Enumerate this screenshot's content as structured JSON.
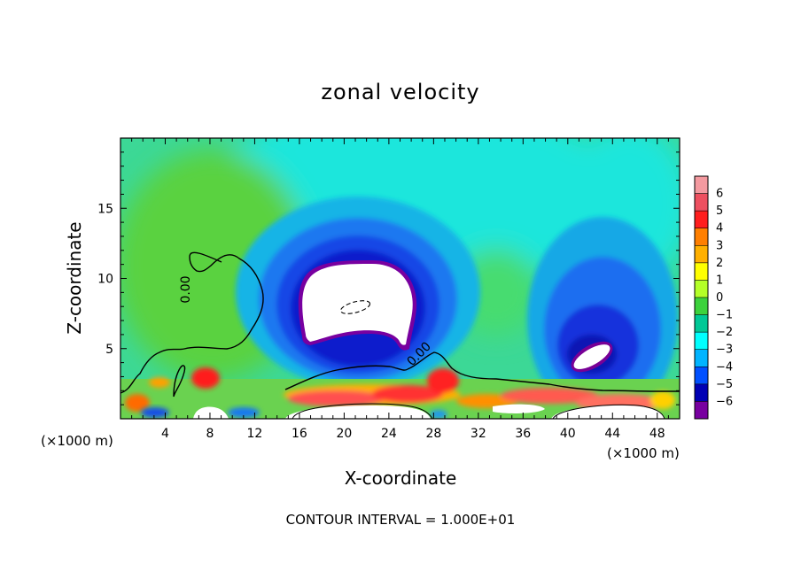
{
  "chart_data": {
    "type": "heatmap",
    "title": "zonal velocity",
    "xlabel": "X-coordinate",
    "ylabel": "Z-coordinate",
    "x_unit_left": "(×1000 m)",
    "x_unit_right": "(×1000 m)",
    "xlim": [
      0,
      50
    ],
    "ylim": [
      0,
      20
    ],
    "x_ticks": [
      4,
      8,
      12,
      16,
      20,
      24,
      28,
      32,
      36,
      40,
      44,
      48
    ],
    "y_ticks": [
      5,
      10,
      15
    ],
    "colorbar": {
      "levels": [
        6,
        5,
        4,
        3,
        2,
        1,
        0,
        -1,
        -2,
        -3,
        -4,
        -5,
        -6
      ],
      "colors": [
        "#f49aa0",
        "#ee5060",
        "#ff1e1e",
        "#ff7f00",
        "#ffb000",
        "#ffff00",
        "#b4ff28",
        "#3cd23c",
        "#00c896",
        "#00ffff",
        "#00b4ff",
        "#0050ff",
        "#0000b4",
        "#7800a0"
      ]
    },
    "contour_labels": [
      "0.00",
      "0.00"
    ],
    "footer": "CONTOUR INTERVAL = 1.000E+01"
  }
}
